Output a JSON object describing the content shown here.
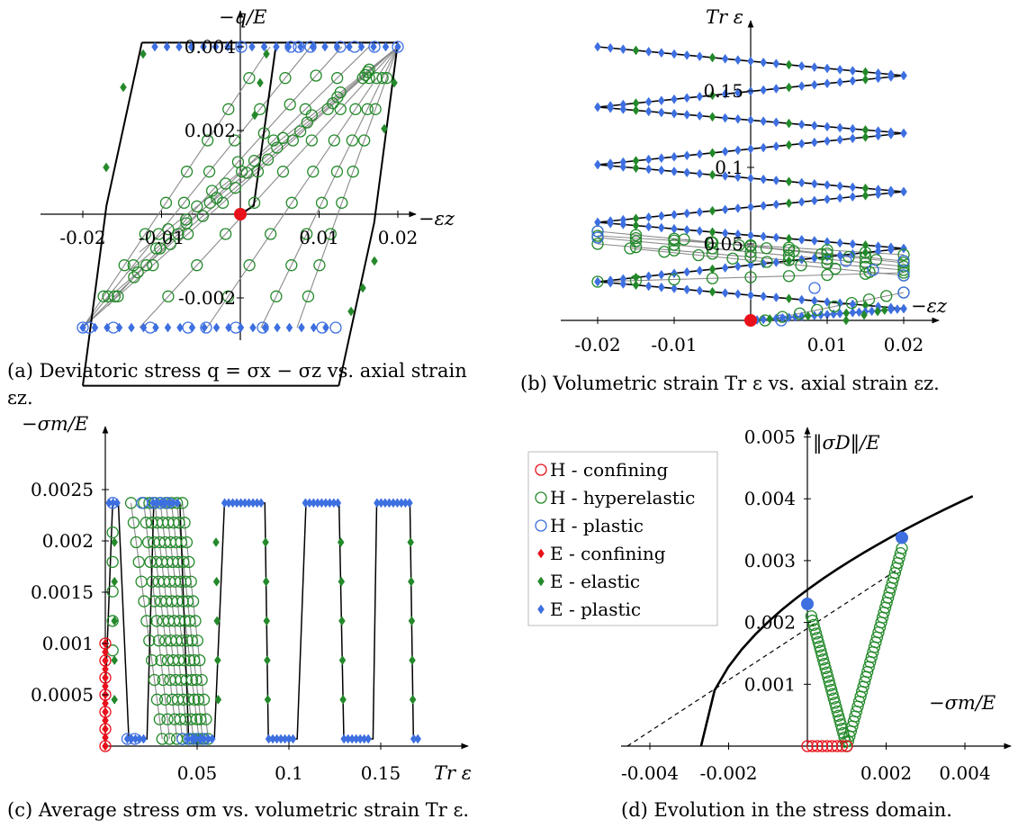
{
  "colors": {
    "H_confining": "#e8101a",
    "H_hyperelastic": "#23892a",
    "H_plastic": "#3d6fe0",
    "E_confining": "#e8101a",
    "E_elastic": "#23892a",
    "E_plastic": "#3d6fe0",
    "envelope": "#000000",
    "path": "#808080"
  },
  "legend": [
    {
      "label": "H - confining",
      "marker": "circle",
      "color": "#e8101a"
    },
    {
      "label": "H - hyperelastic",
      "marker": "circle",
      "color": "#23892a"
    },
    {
      "label": "H - plastic",
      "marker": "circle",
      "color": "#3d6fe0"
    },
    {
      "label": "E - confining",
      "marker": "diamond",
      "color": "#e8101a"
    },
    {
      "label": "E - elastic",
      "marker": "diamond",
      "color": "#23892a"
    },
    {
      "label": "E - plastic",
      "marker": "diamond",
      "color": "#3d6fe0"
    }
  ],
  "chart_data": [
    {
      "id": "a",
      "type": "line",
      "caption_line1": "(a) Deviatoric stress q = σx − σz vs. axial strain",
      "caption_line2": "εz.",
      "xlabel": "−εz",
      "ylabel": "−q/E",
      "xlim": [
        -0.02,
        0.02
      ],
      "ylim": [
        -0.0041,
        0.0041
      ],
      "xticks": [
        -0.02,
        -0.01,
        0.01,
        0.02
      ],
      "xtick_labels": [
        "-0.02",
        "-0.01",
        "0.01",
        "0.02"
      ],
      "yticks": [
        -0.002,
        0.002,
        0.004
      ],
      "ytick_labels": [
        "-0.002",
        "0.002",
        "0.004"
      ],
      "series": [
        {
          "x": [
            -0.02,
            -0.017,
            -0.0125,
            0.0017,
            0.02,
            0.017,
            0.0125,
            -0.02
          ],
          "y": [
            -0.0041,
            0.0002,
            0.0041,
            0.0041,
            0.0041,
            -0.0002,
            -0.0041,
            -0.0041
          ]
        }
      ]
    },
    {
      "id": "b",
      "type": "line",
      "caption": "(b) Volumetric strain Tr ε vs. axial strain εz.",
      "xlabel": "−εz",
      "ylabel": "Tr ε",
      "xlim": [
        -0.02,
        0.02
      ],
      "ylim": [
        0,
        0.19
      ],
      "xticks": [
        -0.02,
        -0.01,
        0.01,
        0.02
      ],
      "xtick_labels": [
        "-0.02",
        "-0.01",
        "0.01",
        "0.02"
      ],
      "yticks": [
        0.05,
        0.1,
        0.15
      ],
      "ytick_labels": [
        "0.05",
        "0.1",
        "0.15"
      ],
      "series": [
        {
          "x": [
            0,
            0.02,
            -0.02,
            0.02,
            -0.02,
            0.02,
            -0.02,
            0.02,
            -0.02,
            0.02,
            -0.02,
            0.02,
            -0.02,
            0.02,
            -0.02,
            0.02
          ],
          "y": [
            0,
            0.005,
            0.018,
            0.027,
            0.043,
            0.047,
            0.053,
            0.072,
            0.088,
            0.093,
            0.108,
            0.12,
            0.133,
            0.138,
            0.152,
            0.165
          ]
        }
      ]
    },
    {
      "id": "c",
      "type": "line",
      "caption": "(c) Average stress σm vs. volumetric strain Tr ε.",
      "xlabel": "Tr ε",
      "ylabel": "−σm/E",
      "xlim": [
        0,
        0.19
      ],
      "ylim": [
        0,
        0.0025
      ],
      "xticks": [
        0.05,
        0.1,
        0.15
      ],
      "xtick_labels": [
        "0.05",
        "0.1",
        "0.15"
      ],
      "yticks": [
        0.0005,
        0.001,
        0.0015,
        0.002,
        0.0025
      ],
      "ytick_labels": [
        "0.0005",
        "0.001",
        "0.0015",
        "0.002",
        "0.0025"
      ],
      "series": [
        {
          "x": [
            0.001,
            0.004,
            0.0071,
            0.0128,
            0.0227,
            0.0264,
            0.0406,
            0.0454,
            0.0649,
            0.0869,
            0.0888,
            0.1045,
            0.1273,
            0.1299,
            0.1458,
            0.1659,
            0.1678,
            0.1713
          ],
          "y": [
            0.0005,
            0.00237,
            0.00237,
            7e-05,
            7e-05,
            0.00237,
            0.00237,
            7e-05,
            0.00237,
            0.00237,
            7e-05,
            0.00237,
            0.00237,
            7e-05,
            0.00237,
            0.00237,
            7e-05,
            7e-05
          ]
        }
      ]
    },
    {
      "id": "d",
      "type": "line",
      "caption": "(d) Evolution in the stress domain.",
      "xlabel": "−σm/E",
      "ylabel": "‖σD‖/E",
      "xlim": [
        -0.005,
        0.0045
      ],
      "ylim": [
        0,
        0.0055
      ],
      "xticks": [
        -0.004,
        -0.002,
        0.002,
        0.004
      ],
      "xtick_labels": [
        "-0.004",
        "-0.002",
        "0.002",
        "0.004"
      ],
      "yticks": [
        0.001,
        0.002,
        0.003,
        0.004,
        0.005
      ],
      "ytick_labels": [
        "0.001",
        "0.002",
        "0.003",
        "0.004",
        "0.005"
      ],
      "series": [
        {
          "name": "H - confining",
          "x": [
            0,
            0.001
          ],
          "y": [
            0,
            0
          ]
        },
        {
          "name": "H - hyperelastic",
          "x": [
            0,
            0.001,
            0.0024
          ],
          "y": [
            0.0021,
            0,
            0.0032
          ]
        },
        {
          "name": "E - plastic",
          "x": [
            0,
            0.0024
          ],
          "y": [
            0.0023,
            0.00337
          ]
        }
      ]
    }
  ]
}
